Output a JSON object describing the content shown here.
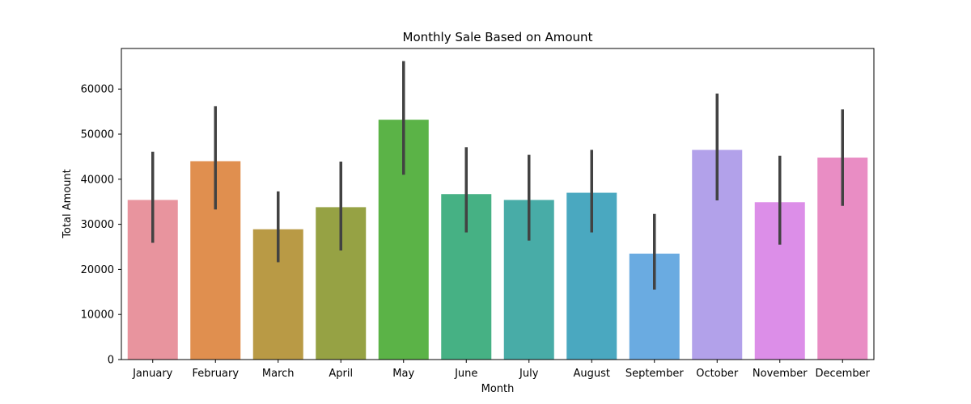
{
  "chart_data": {
    "type": "bar",
    "title": "Monthly Sale Based on Amount",
    "xlabel": "Month",
    "ylabel": "Total Amount",
    "ylim": [
      0,
      69000
    ],
    "yticks": [
      0,
      10000,
      20000,
      30000,
      40000,
      50000,
      60000
    ],
    "grid": false,
    "categories": [
      "January",
      "February",
      "March",
      "April",
      "May",
      "June",
      "July",
      "August",
      "September",
      "October",
      "November",
      "December"
    ],
    "values": [
      35400,
      44000,
      28900,
      33800,
      53200,
      36700,
      35400,
      37000,
      23500,
      46500,
      34900,
      44800
    ],
    "error_low": [
      25900,
      33300,
      21600,
      24200,
      41000,
      28200,
      26400,
      28200,
      15500,
      35300,
      25500,
      34100
    ],
    "error_high": [
      46100,
      56200,
      37300,
      43900,
      66200,
      47100,
      45400,
      46500,
      32300,
      59000,
      45200,
      55500
    ],
    "colors": [
      "#e8949e",
      "#e08f4f",
      "#b99a45",
      "#96a244",
      "#5bb347",
      "#46b184",
      "#48aca7",
      "#4aa8c0",
      "#6aabe1",
      "#b2a1ea",
      "#dc8ee8",
      "#e98dc4"
    ]
  }
}
